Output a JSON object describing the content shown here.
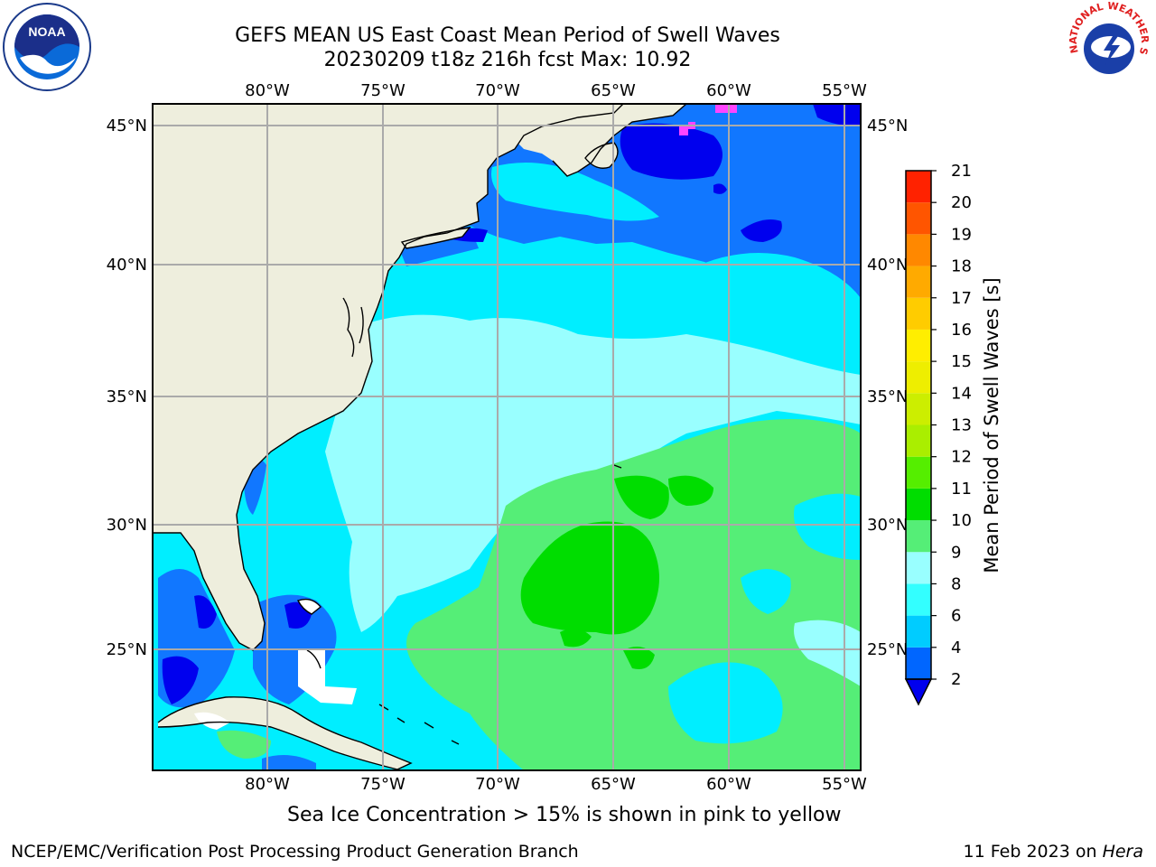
{
  "title_line1": "GEFS MEAN US East Coast Mean Period of Swell Waves",
  "title_line2": "20230209 t18z 216h fcst   Max: 10.92",
  "lon_labels": [
    "80°W",
    "75°W",
    "70°W",
    "65°W",
    "60°W",
    "55°W"
  ],
  "lat_labels": [
    "45°N",
    "40°N",
    "35°N",
    "30°N",
    "25°N"
  ],
  "colorbar": {
    "label": "Mean Period of Swell Waves [s]",
    "ticks": [
      "2",
      "4",
      "6",
      "8",
      "9",
      "10",
      "11",
      "12",
      "13",
      "14",
      "15",
      "16",
      "17",
      "18",
      "19",
      "20",
      "21"
    ],
    "colors": [
      "#0066ff",
      "#00ccff",
      "#33ffff",
      "#99ffff",
      "#55ee77",
      "#00dd00",
      "#55ee00",
      "#aaee00",
      "#ccee00",
      "#eeee00",
      "#ffee00",
      "#ffcc00",
      "#ffaa00",
      "#ff8800",
      "#ff5500",
      "#ff2200"
    ],
    "under_color": "#0000ee"
  },
  "map_colors": {
    "land": "#eeeedd",
    "grid": "#aaaaaa",
    "deep_blue": "#0000ee",
    "blue": "#1177ff",
    "cyan": "#00eeff",
    "light_cyan": "#99ffff",
    "light_green": "#55ee77",
    "green": "#00dd00",
    "ice": "#ff44ff"
  },
  "noaa_logo_text": "NOAA",
  "nws_logo_text": "NATIONAL WEATHER SERVICE",
  "footnote": "Sea Ice Concentration > 15% is shown in pink to yellow",
  "credit": "NCEP/EMC/Verification Post Processing Product Generation Branch",
  "date": "11 Feb 2023 on",
  "machine": "Hera"
}
